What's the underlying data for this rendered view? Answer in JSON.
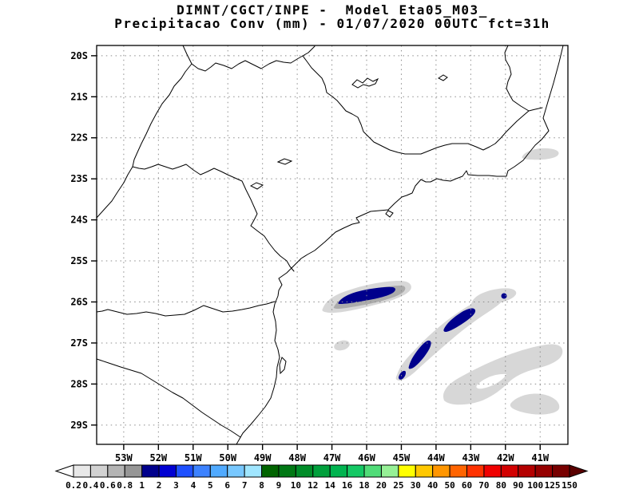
{
  "header": {
    "line1": "DIMNT/CGCT/INPE -  Model Eta05_M03_",
    "line2": "Precipitacao Conv (mm) - 01/07/2020 00UTC fct=31h"
  },
  "map": {
    "lat_labels": [
      "20S",
      "21S",
      "22S",
      "23S",
      "24S",
      "25S",
      "26S",
      "27S",
      "28S",
      "29S"
    ],
    "lon_labels": [
      "53W",
      "52W",
      "51W",
      "50W",
      "49W",
      "48W",
      "47W",
      "46W",
      "45W",
      "44W",
      "43W",
      "42W",
      "41W"
    ]
  },
  "palette": {
    "shade_light": "#d7d7d7",
    "shade_mid": "#ababab",
    "core_blue": "#00008c",
    "grid_gray": "#8c8c8c",
    "line_black": "#000000"
  },
  "colorbar": {
    "labels": [
      "0.2",
      "0.4",
      "0.6",
      "0.8",
      "1",
      "2",
      "3",
      "4",
      "5",
      "6",
      "7",
      "8",
      "9",
      "10",
      "12",
      "14",
      "16",
      "18",
      "20",
      "25",
      "30",
      "40",
      "50",
      "60",
      "70",
      "80",
      "90",
      "100",
      "125",
      "150"
    ],
    "colors": [
      "#ffffff",
      "#e8e8e8",
      "#d2d2d2",
      "#b4b4b4",
      "#969696",
      "#00008c",
      "#0000d2",
      "#1e50ff",
      "#3c82ff",
      "#50aaff",
      "#78c8ff",
      "#a0e6ff",
      "#006400",
      "#007814",
      "#008c28",
      "#00a03c",
      "#00b450",
      "#14c864",
      "#50dc78",
      "#96f096",
      "#ffff00",
      "#ffc800",
      "#ff9600",
      "#ff6400",
      "#ff3200",
      "#f00000",
      "#d20000",
      "#b40000",
      "#960000",
      "#780000",
      "#5a0000"
    ]
  },
  "chart_data": {
    "type": "heatmap",
    "title": "DIMNT/CGCT/INPE -  Model Eta05_M03_",
    "subtitle": "Precipitacao Conv (mm) - 01/07/2020 00UTC fct=31h",
    "variable": "Precipitacao Conv (mm)",
    "model": "Eta05_M03_",
    "run": "01/07/2020 00UTC",
    "forecast": "fct=31h",
    "x_axis": {
      "ticks": [
        "53W",
        "52W",
        "51W",
        "50W",
        "49W",
        "48W",
        "47W",
        "46W",
        "45W",
        "44W",
        "43W",
        "42W",
        "41W"
      ],
      "range_deg_west": [
        53.8,
        40.2
      ]
    },
    "y_axis": {
      "ticks": [
        "20S",
        "21S",
        "22S",
        "23S",
        "24S",
        "25S",
        "26S",
        "27S",
        "28S",
        "29S"
      ],
      "range_deg_south": [
        19.75,
        29.47
      ]
    },
    "levels_mm": [
      0.2,
      0.4,
      0.6,
      0.8,
      1,
      2,
      3,
      4,
      5,
      6,
      7,
      8,
      9,
      10,
      12,
      14,
      16,
      18,
      20,
      25,
      30,
      40,
      50,
      60,
      70,
      80,
      90,
      100,
      125,
      150
    ],
    "legend_position": "bottom",
    "grid": "dotted at every 1 degree",
    "features": [
      {
        "name": "convective band A",
        "location": "about 25.8S, 45.2W-47.3W offshore Sao Paulo",
        "halo_mm": "0.2-0.8",
        "core_mm": "1-3"
      },
      {
        "name": "convective band B-C (diagonal)",
        "location": "from 25.9S 42.2W southwest to 27.7S 45.1W",
        "halo_mm": "0.2-0.8",
        "core_mm": "1-3 in two elongated segments plus small core at south end"
      },
      {
        "name": "small core",
        "location": "25.9S 42.1W",
        "core_mm": "1-2"
      },
      {
        "name": "light precip area",
        "location": "27S-28.7S between 41W and 44.5W over ocean",
        "halo_mm": "0.2-0.6"
      },
      {
        "name": "light precip patch",
        "location": "22.4S near 40.8W-41.8W",
        "halo_mm": "0.2-0.4"
      },
      {
        "name": "light speck",
        "location": "27.1S 46.8W",
        "halo_mm": "0.2-0.4"
      }
    ]
  }
}
